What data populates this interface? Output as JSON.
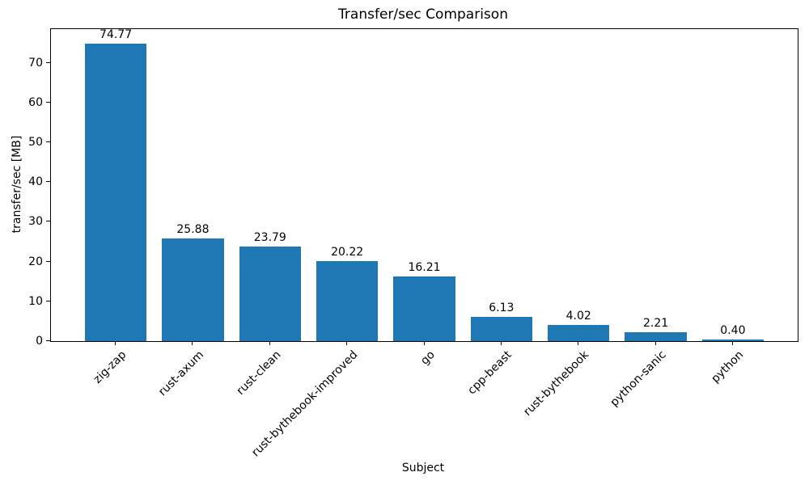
{
  "chart_data": {
    "type": "bar",
    "title": "Transfer/sec Comparison",
    "xlabel": "Subject",
    "ylabel": "transfer/sec [MB]",
    "categories": [
      "zig-zap",
      "rust-axum",
      "rust-clean",
      "rust-bythebook-improved",
      "go",
      "cpp-beast",
      "rust-bythebook",
      "python-sanic",
      "python"
    ],
    "values": [
      74.77,
      25.88,
      23.79,
      20.22,
      16.21,
      6.13,
      4.02,
      2.21,
      0.4
    ],
    "value_labels": [
      "74.77",
      "25.88",
      "23.79",
      "20.22",
      "16.21",
      "6.13",
      "4.02",
      "2.21",
      "0.40"
    ],
    "yticks": [
      0,
      10,
      20,
      30,
      40,
      50,
      60,
      70
    ],
    "ylim": [
      0,
      78.5
    ],
    "bar_color": "#1f77b4",
    "grid": false,
    "legend": "none"
  }
}
